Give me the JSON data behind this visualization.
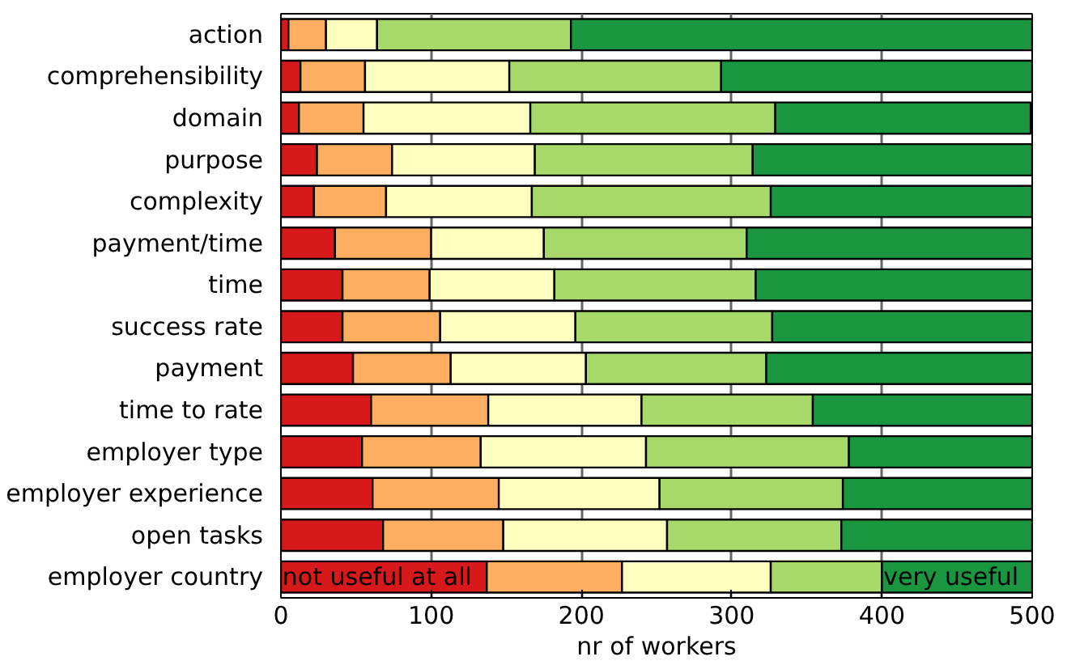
{
  "chart_data": {
    "type": "bar",
    "orientation": "horizontal",
    "stacked": true,
    "xlabel": "nr of workers",
    "categories": [
      "action",
      "comprehensibility",
      "domain",
      "purpose",
      "complexity",
      "payment/time",
      "time",
      "success rate",
      "payment",
      "time to rate",
      "employer type",
      "employer experience",
      "open tasks",
      "employer country"
    ],
    "series": [
      {
        "name": "not useful at all",
        "color": "#d7191c",
        "values": [
          5,
          13,
          12,
          24,
          22,
          36,
          41,
          41,
          48,
          60,
          54,
          61,
          68,
          137
        ]
      },
      {
        "color": "#fdae61",
        "values": [
          25,
          43,
          43,
          50,
          48,
          64,
          58,
          65,
          65,
          78,
          79,
          84,
          80,
          90
        ]
      },
      {
        "color": "#ffffbf",
        "values": [
          34,
          96,
          111,
          95,
          97,
          75,
          83,
          90,
          90,
          102,
          110,
          107,
          109,
          99
        ]
      },
      {
        "color": "#a6d96a",
        "values": [
          129,
          141,
          163,
          145,
          159,
          135,
          134,
          131,
          120,
          114,
          135,
          122,
          116,
          74
        ]
      },
      {
        "name": "very useful",
        "color": "#1a9641",
        "values": [
          307,
          207,
          170,
          186,
          174,
          190,
          184,
          173,
          177,
          146,
          122,
          126,
          127,
          100
        ]
      }
    ],
    "xlim": [
      0,
      500
    ],
    "xticks": [
      0,
      100,
      200,
      300,
      400,
      500
    ],
    "grid": "x"
  }
}
